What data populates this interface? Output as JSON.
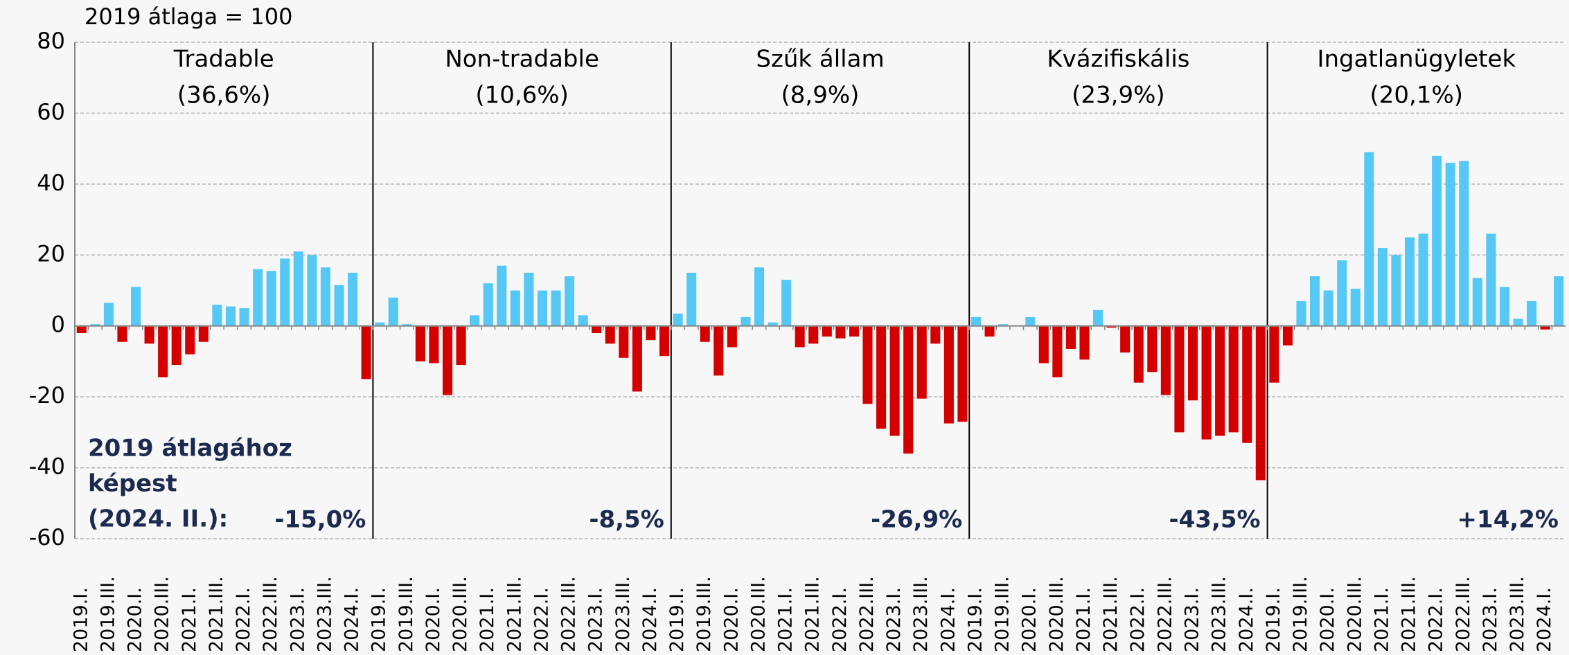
{
  "chart_data": {
    "type": "bar",
    "subtitle": "2019 átlaga = 100",
    "ylim": [
      -60,
      80
    ],
    "yticks": [
      -60,
      -40,
      -20,
      0,
      20,
      40,
      60,
      80
    ],
    "grid": true,
    "positive_color": "#55c8f5",
    "negative_color": "#d40000",
    "categories": [
      "2019.I.",
      null,
      "2019.III.",
      null,
      "2020.I.",
      null,
      "2020.III.",
      null,
      "2021.I.",
      null,
      "2021.III.",
      null,
      "2022.I.",
      null,
      "2022.III.",
      null,
      "2023.I.",
      null,
      "2023.III.",
      null,
      "2024.I.",
      null
    ],
    "note_lines": [
      "2019 átlagához",
      "képest",
      "(2024. II.):"
    ],
    "panels": [
      {
        "title": "Tradable",
        "share": "(36,6%)",
        "summary": "-15,0%",
        "values": [
          -2,
          0.5,
          6.5,
          -4.5,
          11,
          -5,
          -14.5,
          -11,
          -8,
          -4.5,
          6,
          5.5,
          5,
          16,
          15.5,
          19,
          21,
          20,
          16.5,
          11.5,
          15,
          -15
        ]
      },
      {
        "title": "Non-tradable",
        "share": "(10,6%)",
        "summary": "-8,5%",
        "values": [
          1,
          8,
          0.5,
          -10,
          -10.5,
          -19.5,
          -11,
          3,
          12,
          17,
          10,
          15,
          10,
          10,
          14,
          3,
          -2,
          -5,
          -9,
          -18.5,
          -4,
          -8.5
        ]
      },
      {
        "title": "Szűk állam",
        "share": "(8,9%)",
        "summary": "-26,9%",
        "values": [
          3.5,
          15,
          -4.5,
          -14,
          -6,
          2.5,
          16.5,
          1,
          13,
          -6,
          -5,
          -3,
          -3.5,
          -3,
          -22,
          -29,
          -31,
          -36,
          -20.5,
          -5,
          -27.5,
          -27
        ]
      },
      {
        "title": "Kvázifiskális",
        "share": "(23,9%)",
        "summary": "-43,5%",
        "values": [
          2.5,
          -3,
          0.5,
          0,
          2.5,
          -10.5,
          -14.5,
          -6.5,
          -9.5,
          4.5,
          -0.5,
          -7.5,
          -16,
          -13,
          -19.5,
          -30,
          -21,
          -32,
          -31,
          -30,
          -33,
          -43.5
        ]
      },
      {
        "title": "Ingatlanügyletek",
        "share": "(20,1%)",
        "summary": "+14,2%",
        "values": [
          -16,
          -5.5,
          7,
          14,
          10,
          18.5,
          10.5,
          49,
          22,
          20,
          25,
          26,
          48,
          46,
          46.5,
          13.5,
          26,
          11,
          2,
          7,
          -1,
          14
        ]
      }
    ]
  }
}
